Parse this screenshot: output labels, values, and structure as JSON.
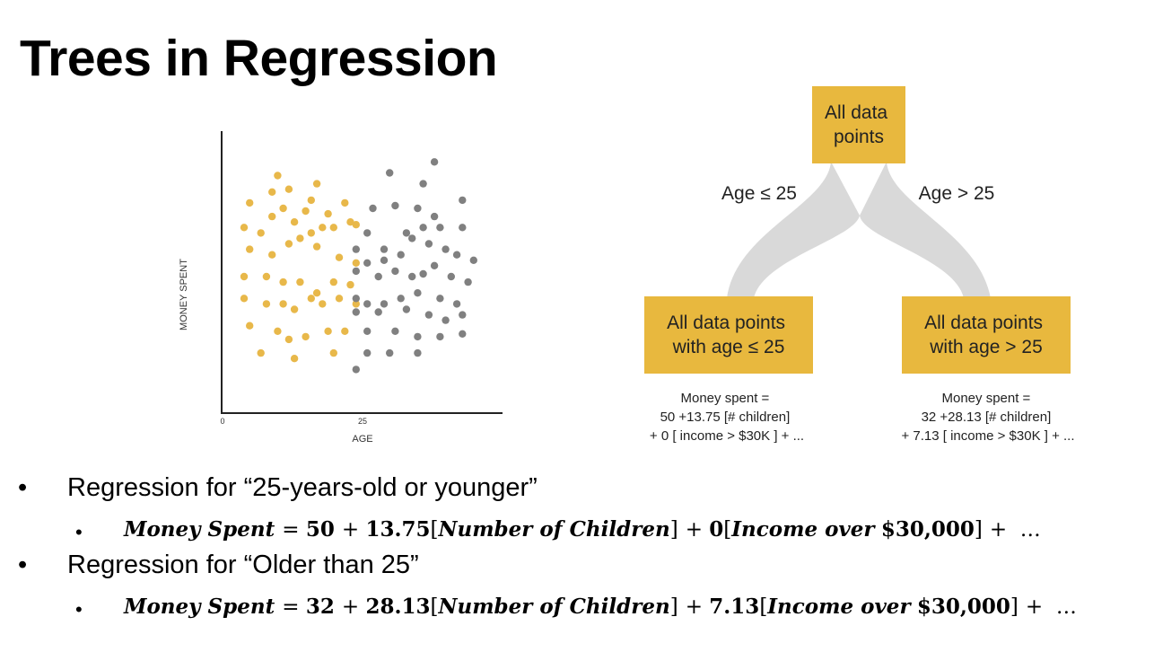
{
  "slide": {
    "title": "Trees in Regression"
  },
  "scatter": {
    "ylabel": "MONEY SPENT",
    "xlabel": "AGE",
    "x_ticks": [
      "0",
      "25"
    ],
    "colors": {
      "young": "#e8b84a",
      "old": "#808080",
      "axis": "#222222"
    },
    "young_points": [
      [
        5,
        77
      ],
      [
        9,
        81
      ],
      [
        10,
        87
      ],
      [
        12,
        82
      ],
      [
        15,
        74
      ],
      [
        16,
        78
      ],
      [
        17,
        84
      ],
      [
        19,
        73
      ],
      [
        22,
        77
      ],
      [
        24,
        69
      ],
      [
        4,
        68
      ],
      [
        7,
        66
      ],
      [
        9,
        72
      ],
      [
        11,
        75
      ],
      [
        13,
        70
      ],
      [
        16,
        66
      ],
      [
        18,
        68
      ],
      [
        20,
        68
      ],
      [
        23,
        70
      ],
      [
        5,
        60
      ],
      [
        9,
        58
      ],
      [
        12,
        62
      ],
      [
        14,
        64
      ],
      [
        17,
        61
      ],
      [
        21,
        57
      ],
      [
        24,
        55
      ],
      [
        4,
        50
      ],
      [
        8,
        50
      ],
      [
        11,
        48
      ],
      [
        14,
        48
      ],
      [
        17,
        44
      ],
      [
        20,
        48
      ],
      [
        23,
        47
      ],
      [
        4,
        42
      ],
      [
        8,
        40
      ],
      [
        11,
        40
      ],
      [
        13,
        38
      ],
      [
        16,
        42
      ],
      [
        18,
        40
      ],
      [
        21,
        42
      ],
      [
        24,
        40
      ],
      [
        5,
        32
      ],
      [
        10,
        30
      ],
      [
        12,
        27
      ],
      [
        15,
        28
      ],
      [
        19,
        30
      ],
      [
        22,
        30
      ],
      [
        7,
        22
      ],
      [
        13,
        20
      ],
      [
        20,
        22
      ]
    ],
    "old_points": [
      [
        30,
        88
      ],
      [
        36,
        84
      ],
      [
        38,
        92
      ],
      [
        43,
        78
      ],
      [
        27,
        75
      ],
      [
        31,
        76
      ],
      [
        35,
        75
      ],
      [
        38,
        72
      ],
      [
        24,
        60
      ],
      [
        26,
        66
      ],
      [
        29,
        60
      ],
      [
        33,
        66
      ],
      [
        36,
        68
      ],
      [
        39,
        68
      ],
      [
        43,
        68
      ],
      [
        26,
        55
      ],
      [
        29,
        56
      ],
      [
        32,
        58
      ],
      [
        34,
        64
      ],
      [
        37,
        62
      ],
      [
        40,
        60
      ],
      [
        42,
        58
      ],
      [
        45,
        56
      ],
      [
        24,
        52
      ],
      [
        28,
        50
      ],
      [
        31,
        52
      ],
      [
        34,
        50
      ],
      [
        36,
        51
      ],
      [
        38,
        54
      ],
      [
        41,
        50
      ],
      [
        44,
        48
      ],
      [
        24,
        42
      ],
      [
        26,
        40
      ],
      [
        29,
        40
      ],
      [
        32,
        42
      ],
      [
        35,
        44
      ],
      [
        39,
        42
      ],
      [
        42,
        40
      ],
      [
        24,
        37
      ],
      [
        28,
        37
      ],
      [
        33,
        38
      ],
      [
        37,
        36
      ],
      [
        40,
        34
      ],
      [
        43,
        36
      ],
      [
        26,
        30
      ],
      [
        31,
        30
      ],
      [
        35,
        28
      ],
      [
        39,
        28
      ],
      [
        43,
        29
      ],
      [
        26,
        22
      ],
      [
        30,
        22
      ],
      [
        35,
        22
      ],
      [
        24,
        16
      ]
    ]
  },
  "tree": {
    "colors": {
      "box": "#e8b83e",
      "branch": "#d9d9d9"
    },
    "root_lines": [
      "All data",
      "points"
    ],
    "left_edge": "Age ≤ 25",
    "right_edge": "Age > 25",
    "left_leaf_lines": [
      "All data points",
      "with age ≤ 25"
    ],
    "right_leaf_lines": [
      "All data points",
      "with age > 25"
    ],
    "left_formula_lines": [
      "Money spent =",
      "50 +13.75 [# children]",
      "+ 0 [ income > $30K ] + ..."
    ],
    "right_formula_lines": [
      "Money spent =",
      "32 +28.13 [# children]",
      "+ 7.13 [ income > $30K ] + ..."
    ]
  },
  "bullets": [
    {
      "text": "Regression for “25-years-old or younger”"
    },
    {
      "text": "Regression for “Older than 25”"
    }
  ],
  "equations": [
    {
      "lhs": "Money Spent",
      "intercept": "50",
      "c1": "13.75",
      "v1": "Number of Children",
      "c2": "0",
      "v2": "Income over",
      "amount": "$30,000",
      "tail": "…"
    },
    {
      "lhs": "Money Spent",
      "intercept": "32",
      "c1": "28.13",
      "v1": "Number of Children",
      "c2": "7.13",
      "v2": "Income over",
      "amount": "$30,000",
      "tail": "…"
    }
  ]
}
